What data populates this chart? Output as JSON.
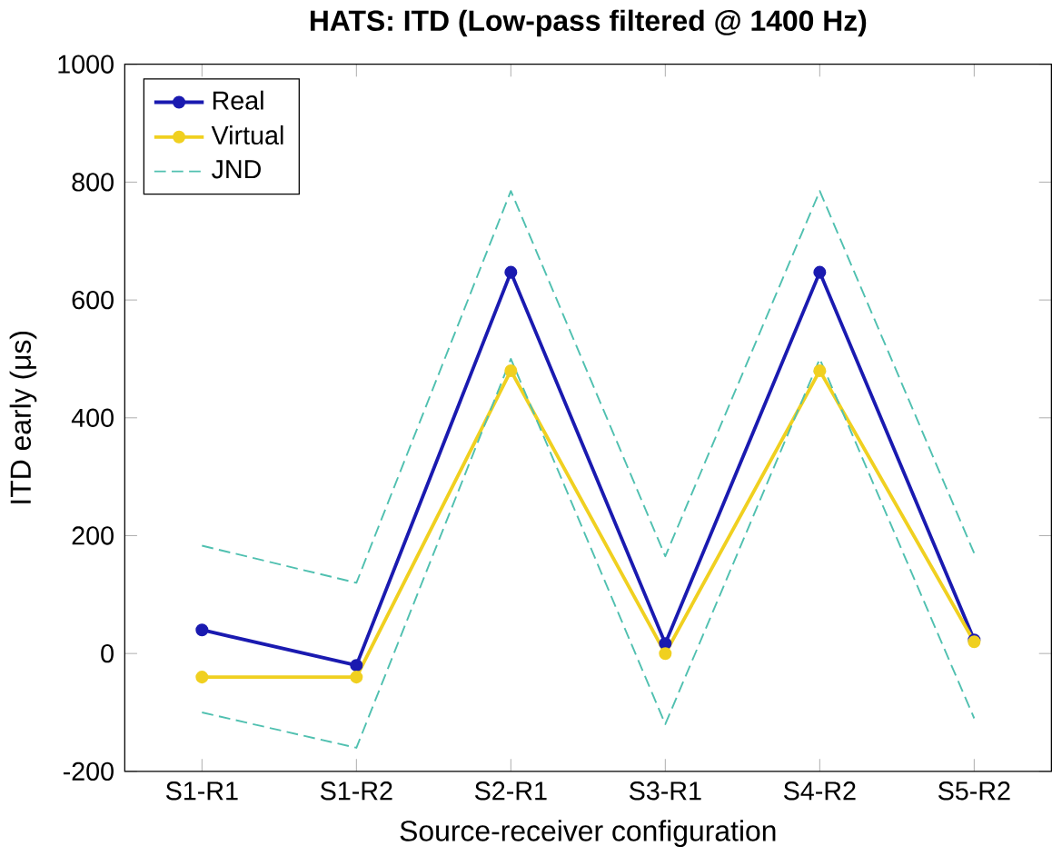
{
  "chart_data": {
    "type": "line",
    "title": "HATS: ITD (Low-pass filtered @ 1400 Hz)",
    "xlabel": "Source-receiver configuration",
    "ylabel": "ITD early (μs)",
    "categories": [
      "S1-R1",
      "S1-R2",
      "S2-R1",
      "S3-R1",
      "S4-R2",
      "S5-R2"
    ],
    "ylim": [
      -200,
      1000
    ],
    "yticks": [
      -200,
      0,
      200,
      400,
      600,
      800,
      1000
    ],
    "grid": false,
    "legend": "top left",
    "series": [
      {
        "name": "Real",
        "color": "#1a1ab0",
        "marker": "circle",
        "line_style": "solid",
        "values": [
          40,
          -20,
          647,
          17,
          647,
          23
        ]
      },
      {
        "name": "Virtual",
        "color": "#f0d020",
        "marker": "circle",
        "line_style": "solid",
        "values": [
          -40,
          -40,
          480,
          0,
          480,
          20
        ]
      },
      {
        "name": "JND",
        "color": "#50c0b0",
        "marker": "none",
        "line_style": "dashed",
        "values": [
          183,
          120,
          785,
          165,
          785,
          170
        ]
      },
      {
        "color": "#50c0b0",
        "marker": "none",
        "line_style": "dashed",
        "values": [
          -100,
          -160,
          500,
          -120,
          500,
          -110
        ]
      }
    ]
  }
}
